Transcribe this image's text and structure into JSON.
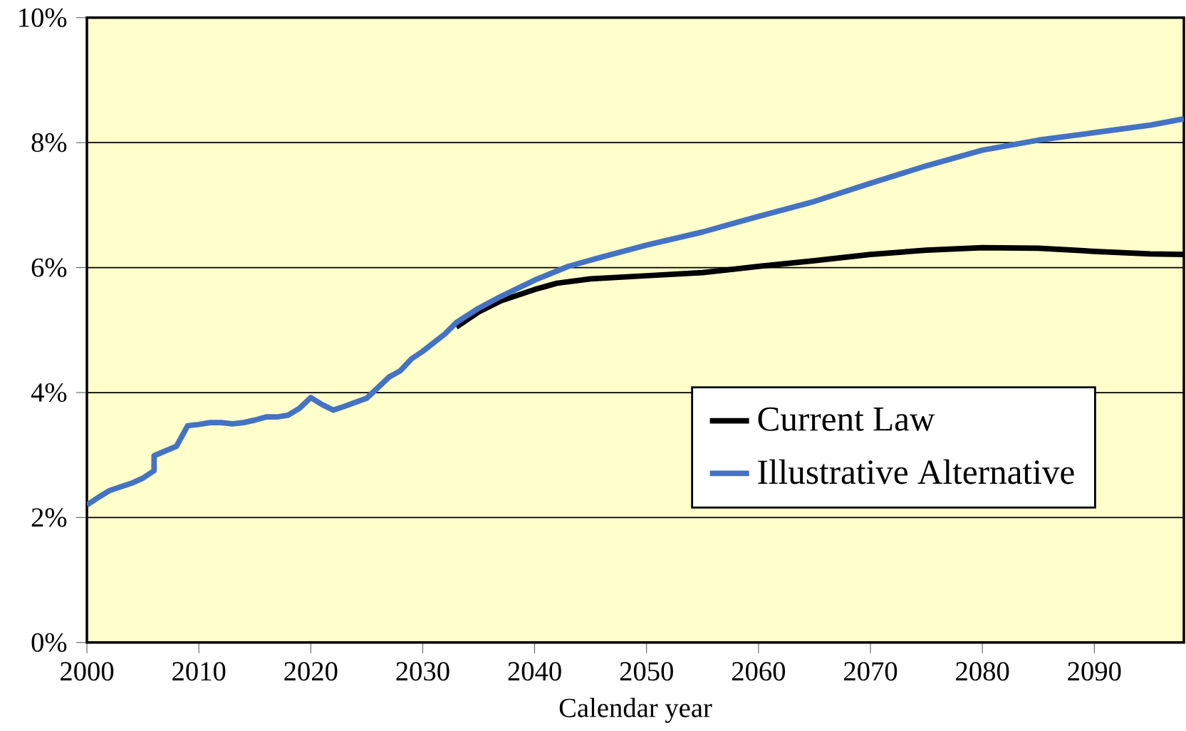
{
  "chart_data": {
    "type": "line",
    "xlabel": "Calendar year",
    "xlim": [
      2000,
      2098
    ],
    "xticks": [
      2000,
      2010,
      2020,
      2030,
      2040,
      2050,
      2060,
      2070,
      2080,
      2090
    ],
    "ylim": [
      0,
      10
    ],
    "yticks": [
      {
        "value": 0,
        "label": "0%"
      },
      {
        "value": 2,
        "label": "2%"
      },
      {
        "value": 4,
        "label": "4%"
      },
      {
        "value": 6,
        "label": "6%"
      },
      {
        "value": 8,
        "label": "8%"
      },
      {
        "value": 10,
        "label": "10%"
      }
    ],
    "grid": "y",
    "legend": "right",
    "series": [
      {
        "name": "Current Law",
        "color": "#000000",
        "x": [
          2033,
          2035,
          2037,
          2040,
          2042,
          2045,
          2050,
          2055,
          2060,
          2065,
          2070,
          2075,
          2080,
          2085,
          2090,
          2095,
          2098
        ],
        "values": [
          5.05,
          5.29,
          5.47,
          5.65,
          5.75,
          5.82,
          5.87,
          5.92,
          6.02,
          6.11,
          6.21,
          6.28,
          6.32,
          6.31,
          6.26,
          6.22,
          6.21
        ]
      },
      {
        "name": "Illustrative Alternative",
        "color": "#4472c4",
        "x": [
          2000,
          2001,
          2002,
          2003,
          2004,
          2005,
          2006,
          2006,
          2008,
          2009,
          2010,
          2011,
          2012,
          2013,
          2014,
          2015,
          2016,
          2017,
          2018,
          2019,
          2020,
          2021,
          2022,
          2023,
          2025,
          2026,
          2027,
          2028,
          2029,
          2030,
          2032,
          2033,
          2035,
          2037,
          2040,
          2043,
          2046,
          2050,
          2055,
          2060,
          2065,
          2070,
          2075,
          2080,
          2085,
          2090,
          2095,
          2098
        ],
        "values": [
          2.2,
          2.32,
          2.43,
          2.49,
          2.55,
          2.63,
          2.75,
          2.99,
          3.14,
          3.47,
          3.49,
          3.52,
          3.52,
          3.5,
          3.52,
          3.56,
          3.61,
          3.61,
          3.64,
          3.75,
          3.92,
          3.81,
          3.72,
          3.78,
          3.91,
          4.08,
          4.25,
          4.35,
          4.54,
          4.66,
          4.94,
          5.12,
          5.35,
          5.54,
          5.8,
          6.02,
          6.17,
          6.36,
          6.57,
          6.82,
          7.06,
          7.35,
          7.63,
          7.88,
          8.04,
          8.16,
          8.28,
          8.38
        ]
      }
    ]
  }
}
